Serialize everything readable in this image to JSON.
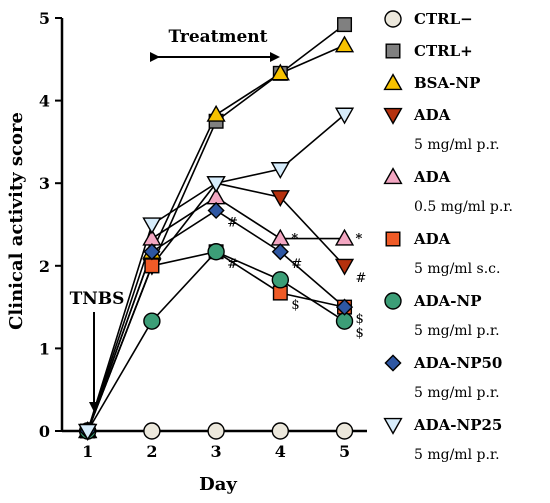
{
  "chart_data": {
    "type": "line",
    "xlabel": "Day",
    "ylabel": "Clinical activity score",
    "x": [
      1,
      2,
      3,
      4,
      5
    ],
    "xlim": [
      0.6,
      5.35
    ],
    "ylim": [
      0,
      5
    ],
    "x_ticks": [
      "1",
      "2",
      "3",
      "4",
      "5"
    ],
    "y_ticks": [
      "0",
      "1",
      "2",
      "3",
      "4",
      "5"
    ],
    "grid": false,
    "legend_position": "right",
    "annotations": {
      "tnbs": {
        "text": "TNBS",
        "x": 1
      },
      "treatment": {
        "text": "Treatment",
        "x_start": 2,
        "x_end": 4
      }
    },
    "series": [
      {
        "name": "CTRL−",
        "sub": "",
        "marker": "circle",
        "color": "#ece8dc",
        "values": [
          0,
          0,
          0,
          0,
          0
        ]
      },
      {
        "name": "CTRL+",
        "sub": "",
        "marker": "square",
        "color": "#808080",
        "values": [
          0,
          2.0,
          3.75,
          4.33,
          4.92
        ]
      },
      {
        "name": "BSA-NP",
        "sub": "",
        "marker": "triangle-up",
        "color": "#f7c200",
        "values": [
          0,
          2.17,
          3.83,
          4.33,
          4.67
        ]
      },
      {
        "name": "ADA",
        "sub": "5 mg/ml p.r.",
        "marker": "triangle-down",
        "color": "#b5310e",
        "values": [
          0,
          2.0,
          3.0,
          2.83,
          2.0
        ]
      },
      {
        "name": "ADA",
        "sub": "0.5 mg/ml p.r.",
        "marker": "triangle-up",
        "color": "#f3a7c2",
        "values": [
          0,
          2.33,
          2.83,
          2.33,
          2.33
        ]
      },
      {
        "name": "ADA",
        "sub": "5 mg/ml s.c.",
        "marker": "square",
        "color": "#ef5b27",
        "values": [
          0,
          2.0,
          2.17,
          1.67,
          1.5
        ]
      },
      {
        "name": "ADA-NP",
        "sub": "5 mg/ml p.r.",
        "marker": "circle",
        "color": "#3c9e77",
        "values": [
          0,
          1.33,
          2.17,
          1.83,
          1.33
        ]
      },
      {
        "name": "ADA-NP50",
        "sub": "5 mg/ml p.r.",
        "marker": "diamond",
        "color": "#2e57a3",
        "values": [
          0,
          2.17,
          2.67,
          2.17,
          1.5
        ]
      },
      {
        "name": "ADA-NP25",
        "sub": "5 mg/ml p.r.",
        "marker": "triangle-down",
        "color": "#d6ecfb",
        "values": [
          0,
          2.5,
          3.0,
          3.17,
          3.83
        ]
      }
    ],
    "significance_marks": [
      {
        "text": "*",
        "x": 4,
        "y": 2.33,
        "bold": true
      },
      {
        "text": "*",
        "x": 5,
        "y": 2.33,
        "bold": true
      },
      {
        "text": "#",
        "x": 3,
        "y": 2.67
      },
      {
        "text": "#",
        "x": 3,
        "y": 2.17
      },
      {
        "text": "#",
        "x": 4,
        "y": 2.17
      },
      {
        "text": "#",
        "x": 5,
        "y": 2.0
      },
      {
        "text": "$",
        "x": 4,
        "y": 1.67
      },
      {
        "text": "$",
        "x": 5,
        "y": 1.5
      },
      {
        "text": "$",
        "x": 5,
        "y": 1.33
      }
    ]
  }
}
